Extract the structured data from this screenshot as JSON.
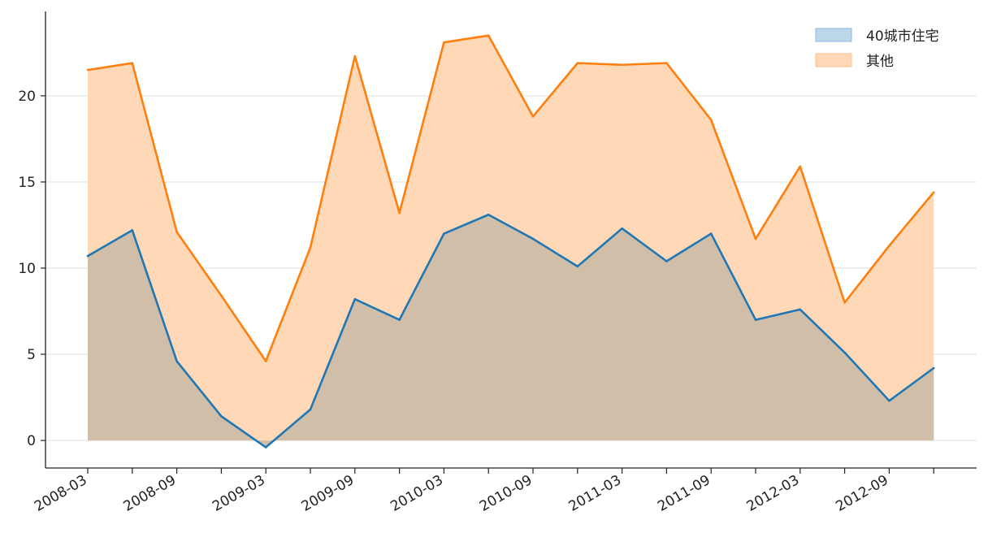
{
  "chart_data": {
    "type": "area",
    "x": [
      "2008-03",
      "2008-06",
      "2008-09",
      "2008-12",
      "2009-03",
      "2009-06",
      "2009-09",
      "2009-12",
      "2010-03",
      "2010-06",
      "2010-09",
      "2010-12",
      "2011-03",
      "2011-06",
      "2011-09",
      "2011-12",
      "2012-03",
      "2012-06",
      "2012-09",
      "2012-12"
    ],
    "x_tick_labels": [
      "2008-03",
      "2008-09",
      "2009-03",
      "2009-09",
      "2010-03",
      "2010-09",
      "2011-03",
      "2011-09",
      "2012-03",
      "2012-09"
    ],
    "series": [
      {
        "name": "40城市住宅",
        "color": "#1f77b4",
        "fill": "#bcd6ea",
        "values": [
          10.7,
          12.2,
          4.6,
          1.4,
          -0.4,
          1.8,
          8.2,
          7.0,
          12.0,
          13.1,
          11.7,
          10.1,
          12.3,
          10.4,
          12.0,
          7.0,
          7.6,
          5.1,
          2.3,
          4.2
        ]
      },
      {
        "name": "其他",
        "color": "#ff7f0e",
        "fill": "#ffd8b8",
        "values": [
          21.5,
          21.9,
          12.1,
          8.4,
          4.6,
          11.2,
          22.3,
          13.2,
          23.1,
          23.5,
          18.8,
          21.9,
          21.8,
          21.9,
          18.6,
          11.7,
          15.9,
          8.0,
          11.3,
          14.4
        ]
      }
    ],
    "overlap_fill": "#d0bea9",
    "y_ticks": [
      0,
      5,
      10,
      15,
      20
    ],
    "ylim": [
      -1.6,
      24.9
    ],
    "grid": "y",
    "legend_position": "top-right"
  }
}
